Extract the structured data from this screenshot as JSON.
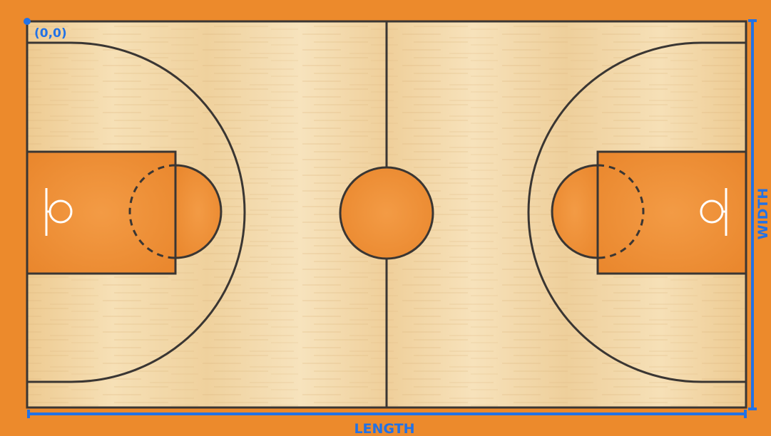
{
  "diagram": {
    "origin_label": "(0,0)",
    "length_label": "LENGTH",
    "width_label": "WIDTH"
  },
  "colors": {
    "surround": "#ec8a2c",
    "wood": "#f3d7a6",
    "paint": "#ef8d33",
    "lines": "#3a3633",
    "rim": "#ffffff",
    "annotation": "#2272e6"
  }
}
